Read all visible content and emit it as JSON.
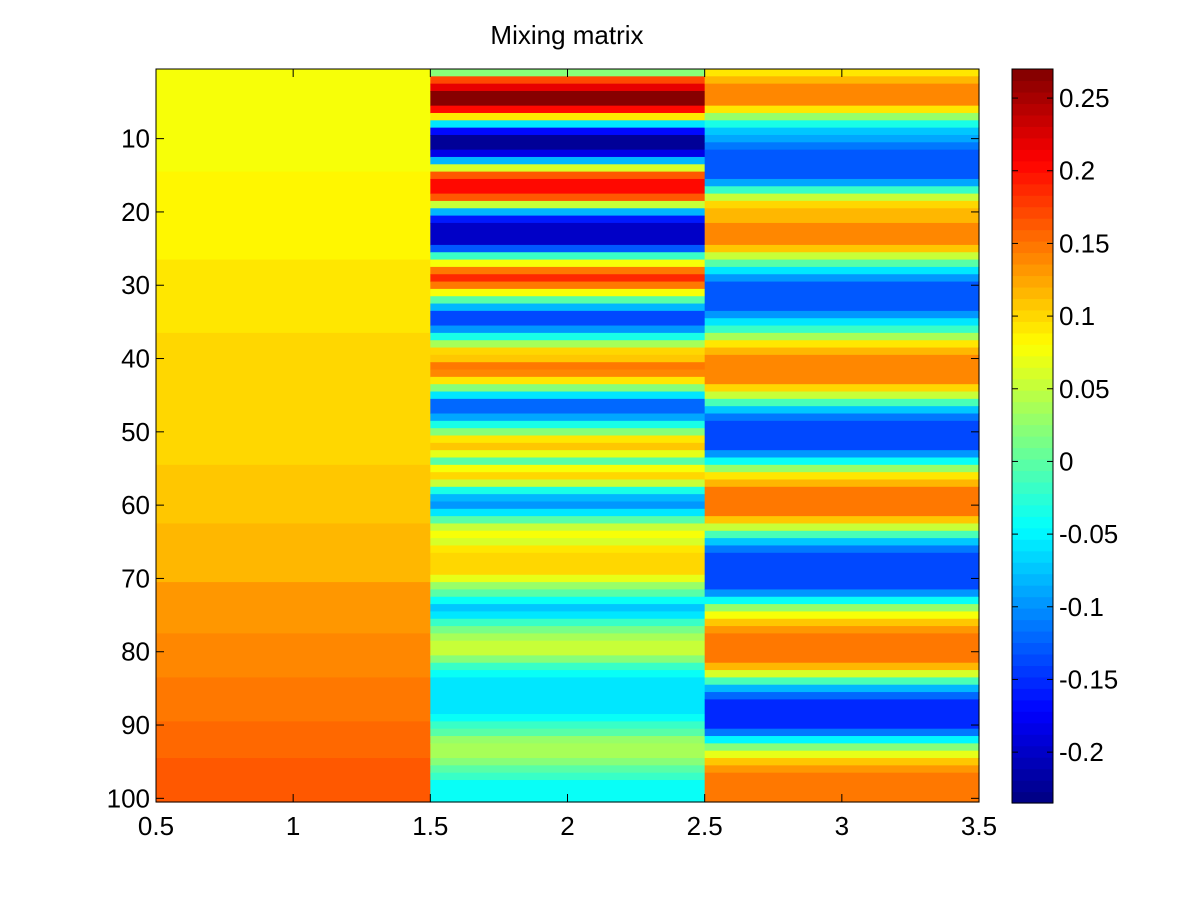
{
  "chart_data": {
    "type": "heatmap",
    "title": "Mixing matrix",
    "xlabel": "",
    "ylabel": "",
    "colormap": "jet",
    "xlim": [
      0.5,
      3.5
    ],
    "ylim": [
      0.5,
      100.5
    ],
    "y_reversed": true,
    "x_ticks": [
      0.5,
      1,
      1.5,
      2,
      2.5,
      3,
      3.5
    ],
    "x_tick_labels": [
      "0.5",
      "1",
      "1.5",
      "2",
      "2.5",
      "3",
      "3.5"
    ],
    "y_ticks": [
      10,
      20,
      30,
      40,
      50,
      60,
      70,
      80,
      90,
      100
    ],
    "y_tick_labels": [
      "10",
      "20",
      "30",
      "40",
      "50",
      "60",
      "70",
      "80",
      "90",
      "100"
    ],
    "colorbar": {
      "clim": [
        -0.235,
        0.27
      ],
      "ticks": [
        0.25,
        0.2,
        0.15,
        0.1,
        0.05,
        0,
        -0.05,
        -0.1,
        -0.15,
        -0.2
      ],
      "tick_labels": [
        "0.25",
        "0.2",
        "0.15",
        "0.1",
        "0.05",
        "0",
        "-0.05",
        "-0.1",
        "-0.15",
        "-0.2"
      ]
    },
    "rows": 100,
    "columns": [
      {
        "name": "1",
        "bands": [
          {
            "from": 1,
            "to": 14,
            "value": 0.078
          },
          {
            "from": 15,
            "to": 26,
            "value": 0.085
          },
          {
            "from": 27,
            "to": 36,
            "value": 0.092
          },
          {
            "from": 37,
            "to": 45,
            "value": 0.098
          },
          {
            "from": 46,
            "to": 54,
            "value": 0.104
          },
          {
            "from": 55,
            "to": 62,
            "value": 0.112
          },
          {
            "from": 63,
            "to": 70,
            "value": 0.12
          },
          {
            "from": 71,
            "to": 77,
            "value": 0.128
          },
          {
            "from": 78,
            "to": 83,
            "value": 0.136
          },
          {
            "from": 84,
            "to": 89,
            "value": 0.144
          },
          {
            "from": 90,
            "to": 94,
            "value": 0.152
          },
          {
            "from": 95,
            "to": 100,
            "value": 0.162
          }
        ]
      },
      {
        "name": "2",
        "bands": [
          {
            "from": 1,
            "to": 1,
            "value": 0.02
          },
          {
            "from": 2,
            "to": 2,
            "value": 0.17
          },
          {
            "from": 3,
            "to": 3,
            "value": 0.22
          },
          {
            "from": 4,
            "to": 5,
            "value": 0.265
          },
          {
            "from": 6,
            "to": 6,
            "value": 0.2
          },
          {
            "from": 7,
            "to": 7,
            "value": 0.09
          },
          {
            "from": 8,
            "to": 8,
            "value": -0.06
          },
          {
            "from": 9,
            "to": 9,
            "value": -0.17
          },
          {
            "from": 10,
            "to": 11,
            "value": -0.225
          },
          {
            "from": 12,
            "to": 12,
            "value": -0.18
          },
          {
            "from": 13,
            "to": 13,
            "value": -0.08
          },
          {
            "from": 14,
            "to": 14,
            "value": 0.06
          },
          {
            "from": 15,
            "to": 15,
            "value": 0.16
          },
          {
            "from": 16,
            "to": 17,
            "value": 0.205
          },
          {
            "from": 18,
            "to": 18,
            "value": 0.16
          },
          {
            "from": 19,
            "to": 19,
            "value": 0.05
          },
          {
            "from": 20,
            "to": 20,
            "value": -0.08
          },
          {
            "from": 21,
            "to": 21,
            "value": -0.16
          },
          {
            "from": 22,
            "to": 24,
            "value": -0.2
          },
          {
            "from": 25,
            "to": 25,
            "value": -0.13
          },
          {
            "from": 26,
            "to": 26,
            "value": -0.02
          },
          {
            "from": 27,
            "to": 27,
            "value": 0.08
          },
          {
            "from": 28,
            "to": 28,
            "value": 0.15
          },
          {
            "from": 29,
            "to": 29,
            "value": 0.185
          },
          {
            "from": 30,
            "to": 30,
            "value": 0.15
          },
          {
            "from": 31,
            "to": 31,
            "value": 0.08
          },
          {
            "from": 32,
            "to": 32,
            "value": 0.0
          },
          {
            "from": 33,
            "to": 33,
            "value": -0.08
          },
          {
            "from": 34,
            "to": 35,
            "value": -0.14
          },
          {
            "from": 36,
            "to": 36,
            "value": -0.1
          },
          {
            "from": 37,
            "to": 37,
            "value": -0.03
          },
          {
            "from": 38,
            "to": 38,
            "value": 0.04
          },
          {
            "from": 39,
            "to": 39,
            "value": 0.1
          },
          {
            "from": 40,
            "to": 40,
            "value": 0.11
          },
          {
            "from": 41,
            "to": 41,
            "value": 0.145
          },
          {
            "from": 42,
            "to": 42,
            "value": 0.14
          },
          {
            "from": 43,
            "to": 43,
            "value": 0.09
          },
          {
            "from": 44,
            "to": 44,
            "value": 0.02
          },
          {
            "from": 45,
            "to": 45,
            "value": -0.06
          },
          {
            "from": 46,
            "to": 47,
            "value": -0.12
          },
          {
            "from": 48,
            "to": 48,
            "value": -0.09
          },
          {
            "from": 49,
            "to": 49,
            "value": -0.03
          },
          {
            "from": 50,
            "to": 50,
            "value": 0.02
          },
          {
            "from": 51,
            "to": 51,
            "value": 0.09
          },
          {
            "from": 52,
            "to": 52,
            "value": 0.11
          },
          {
            "from": 53,
            "to": 53,
            "value": 0.07
          },
          {
            "from": 54,
            "to": 54,
            "value": 0.0
          },
          {
            "from": 55,
            "to": 55,
            "value": 0.08
          },
          {
            "from": 56,
            "to": 56,
            "value": 0.1
          },
          {
            "from": 57,
            "to": 57,
            "value": 0.05
          },
          {
            "from": 58,
            "to": 58,
            "value": -0.03
          },
          {
            "from": 59,
            "to": 59,
            "value": -0.08
          },
          {
            "from": 60,
            "to": 60,
            "value": -0.1
          },
          {
            "from": 61,
            "to": 61,
            "value": -0.06
          },
          {
            "from": 62,
            "to": 62,
            "value": 0.0
          },
          {
            "from": 63,
            "to": 63,
            "value": 0.05
          },
          {
            "from": 64,
            "to": 64,
            "value": 0.08
          },
          {
            "from": 65,
            "to": 65,
            "value": 0.06
          },
          {
            "from": 66,
            "to": 66,
            "value": 0.09
          },
          {
            "from": 67,
            "to": 69,
            "value": 0.1
          },
          {
            "from": 70,
            "to": 70,
            "value": 0.07
          },
          {
            "from": 71,
            "to": 71,
            "value": 0.03
          },
          {
            "from": 72,
            "to": 72,
            "value": 0.0
          },
          {
            "from": 73,
            "to": 73,
            "value": -0.04
          },
          {
            "from": 74,
            "to": 74,
            "value": -0.07
          },
          {
            "from": 75,
            "to": 75,
            "value": -0.06
          },
          {
            "from": 76,
            "to": 76,
            "value": -0.02
          },
          {
            "from": 77,
            "to": 77,
            "value": 0.01
          },
          {
            "from": 78,
            "to": 78,
            "value": 0.04
          },
          {
            "from": 79,
            "to": 80,
            "value": 0.05
          },
          {
            "from": 81,
            "to": 81,
            "value": 0.02
          },
          {
            "from": 82,
            "to": 82,
            "value": -0.02
          },
          {
            "from": 83,
            "to": 83,
            "value": -0.04
          },
          {
            "from": 84,
            "to": 88,
            "value": -0.055
          },
          {
            "from": 89,
            "to": 89,
            "value": -0.04
          },
          {
            "from": 90,
            "to": 90,
            "value": -0.02
          },
          {
            "from": 91,
            "to": 91,
            "value": 0.0
          },
          {
            "from": 92,
            "to": 92,
            "value": 0.03
          },
          {
            "from": 93,
            "to": 94,
            "value": 0.04
          },
          {
            "from": 95,
            "to": 95,
            "value": 0.02
          },
          {
            "from": 96,
            "to": 96,
            "value": 0.0
          },
          {
            "from": 97,
            "to": 97,
            "value": -0.02
          },
          {
            "from": 98,
            "to": 100,
            "value": -0.045
          }
        ]
      },
      {
        "name": "3",
        "bands": [
          {
            "from": 1,
            "to": 1,
            "value": 0.09
          },
          {
            "from": 2,
            "to": 2,
            "value": 0.12
          },
          {
            "from": 3,
            "to": 5,
            "value": 0.14
          },
          {
            "from": 6,
            "to": 6,
            "value": 0.09
          },
          {
            "from": 7,
            "to": 7,
            "value": 0.03
          },
          {
            "from": 8,
            "to": 8,
            "value": -0.03
          },
          {
            "from": 9,
            "to": 9,
            "value": -0.07
          },
          {
            "from": 10,
            "to": 10,
            "value": -0.09
          },
          {
            "from": 11,
            "to": 11,
            "value": -0.11
          },
          {
            "from": 12,
            "to": 15,
            "value": -0.13
          },
          {
            "from": 16,
            "to": 16,
            "value": -0.09
          },
          {
            "from": 17,
            "to": 17,
            "value": -0.02
          },
          {
            "from": 18,
            "to": 18,
            "value": 0.05
          },
          {
            "from": 19,
            "to": 19,
            "value": 0.1
          },
          {
            "from": 20,
            "to": 21,
            "value": 0.12
          },
          {
            "from": 22,
            "to": 24,
            "value": 0.14
          },
          {
            "from": 25,
            "to": 25,
            "value": 0.11
          },
          {
            "from": 26,
            "to": 26,
            "value": 0.05
          },
          {
            "from": 27,
            "to": 27,
            "value": 0.0
          },
          {
            "from": 28,
            "to": 28,
            "value": -0.06
          },
          {
            "from": 29,
            "to": 29,
            "value": -0.1
          },
          {
            "from": 30,
            "to": 33,
            "value": -0.13
          },
          {
            "from": 34,
            "to": 34,
            "value": -0.1
          },
          {
            "from": 35,
            "to": 35,
            "value": -0.06
          },
          {
            "from": 36,
            "to": 36,
            "value": -0.02
          },
          {
            "from": 37,
            "to": 37,
            "value": 0.04
          },
          {
            "from": 38,
            "to": 38,
            "value": 0.09
          },
          {
            "from": 39,
            "to": 39,
            "value": 0.12
          },
          {
            "from": 40,
            "to": 43,
            "value": 0.14
          },
          {
            "from": 44,
            "to": 44,
            "value": 0.1
          },
          {
            "from": 45,
            "to": 45,
            "value": 0.05
          },
          {
            "from": 46,
            "to": 46,
            "value": -0.01
          },
          {
            "from": 47,
            "to": 47,
            "value": -0.07
          },
          {
            "from": 48,
            "to": 48,
            "value": -0.11
          },
          {
            "from": 49,
            "to": 52,
            "value": -0.14
          },
          {
            "from": 53,
            "to": 53,
            "value": -0.1
          },
          {
            "from": 54,
            "to": 54,
            "value": -0.04
          },
          {
            "from": 55,
            "to": 55,
            "value": 0.03
          },
          {
            "from": 56,
            "to": 56,
            "value": 0.09
          },
          {
            "from": 57,
            "to": 57,
            "value": 0.12
          },
          {
            "from": 58,
            "to": 61,
            "value": 0.145
          },
          {
            "from": 62,
            "to": 62,
            "value": 0.11
          },
          {
            "from": 63,
            "to": 63,
            "value": 0.05
          },
          {
            "from": 64,
            "to": 64,
            "value": -0.01
          },
          {
            "from": 65,
            "to": 65,
            "value": -0.07
          },
          {
            "from": 66,
            "to": 66,
            "value": -0.11
          },
          {
            "from": 67,
            "to": 71,
            "value": -0.14
          },
          {
            "from": 72,
            "to": 72,
            "value": -0.1
          },
          {
            "from": 73,
            "to": 73,
            "value": -0.04
          },
          {
            "from": 74,
            "to": 74,
            "value": 0.03
          },
          {
            "from": 75,
            "to": 75,
            "value": 0.08
          },
          {
            "from": 76,
            "to": 76,
            "value": 0.11
          },
          {
            "from": 77,
            "to": 77,
            "value": 0.13
          },
          {
            "from": 78,
            "to": 81,
            "value": 0.15
          },
          {
            "from": 82,
            "to": 82,
            "value": 0.12
          },
          {
            "from": 83,
            "to": 83,
            "value": 0.06
          },
          {
            "from": 84,
            "to": 84,
            "value": -0.01
          },
          {
            "from": 85,
            "to": 85,
            "value": -0.08
          },
          {
            "from": 86,
            "to": 86,
            "value": -0.12
          },
          {
            "from": 87,
            "to": 90,
            "value": -0.15
          },
          {
            "from": 91,
            "to": 91,
            "value": -0.11
          },
          {
            "from": 92,
            "to": 92,
            "value": -0.05
          },
          {
            "from": 93,
            "to": 93,
            "value": 0.02
          },
          {
            "from": 94,
            "to": 94,
            "value": 0.07
          },
          {
            "from": 95,
            "to": 95,
            "value": 0.11
          },
          {
            "from": 96,
            "to": 96,
            "value": 0.13
          },
          {
            "from": 97,
            "to": 100,
            "value": 0.145
          }
        ]
      }
    ]
  }
}
